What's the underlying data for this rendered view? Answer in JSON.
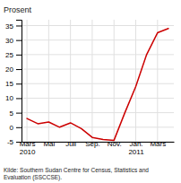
{
  "chart_data": {
    "type": "line",
    "ylabel": "Prosent",
    "caption": "Kilde: Southern Sudan Centre for Census, Statistics and\nEvaluation (SSCCSE).",
    "categories": [
      "Mars\n2010",
      null,
      "Mai",
      null,
      "Juli",
      null,
      "Sep.",
      null,
      "Nov.",
      null,
      "Jan.\n2011",
      null,
      "Mars",
      null
    ],
    "values": [
      3.0,
      1.2,
      1.8,
      0.0,
      1.5,
      -0.5,
      -3.5,
      -4.2,
      -4.5,
      5.0,
      14.0,
      25.0,
      32.5,
      34.0
    ],
    "color": "#cc0000",
    "ylim": [
      -5,
      37
    ],
    "yticks": [
      -5,
      0,
      5,
      10,
      15,
      20,
      25,
      30,
      35
    ],
    "grid": true
  }
}
